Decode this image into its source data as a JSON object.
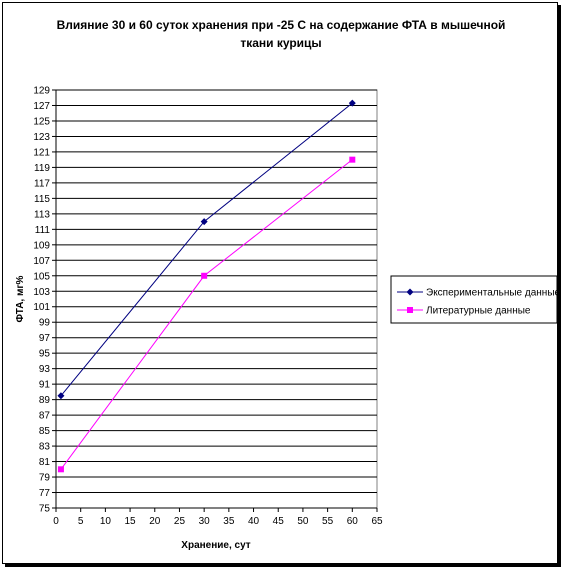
{
  "chart_data": {
    "type": "line",
    "title_lines": [
      "Влияние 30 и 60 суток хранения при -25 С на содержание ФТА в мышечной",
      "ткани курицы"
    ],
    "xlabel": "Хранение, сут",
    "ylabel": "ФТА, мг%",
    "xlim": [
      0,
      65
    ],
    "ylim": [
      75,
      129
    ],
    "x_ticks": [
      0,
      5,
      10,
      15,
      20,
      25,
      30,
      35,
      40,
      45,
      50,
      55,
      60,
      65
    ],
    "y_ticks": [
      75,
      77,
      79,
      81,
      83,
      85,
      87,
      89,
      91,
      93,
      95,
      97,
      99,
      101,
      103,
      105,
      107,
      109,
      111,
      113,
      115,
      117,
      119,
      121,
      123,
      125,
      127,
      129
    ],
    "grid": "horizontal",
    "legend_position": "right",
    "series": [
      {
        "name": "Экспериментальные данные",
        "color": "#000080",
        "marker": "diamond",
        "x": [
          1,
          30,
          60
        ],
        "y": [
          89.5,
          112,
          127.3
        ]
      },
      {
        "name": "Литературные данные",
        "color": "#ff00ff",
        "marker": "square",
        "x": [
          1,
          30,
          60
        ],
        "y": [
          80,
          105,
          120
        ]
      }
    ]
  }
}
